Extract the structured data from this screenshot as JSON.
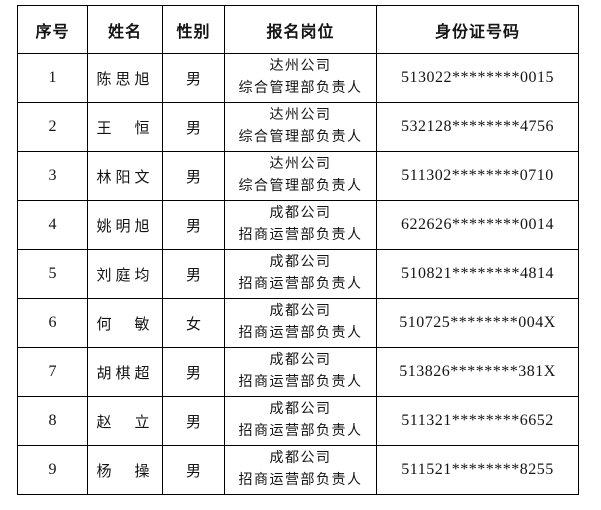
{
  "document": {
    "type": "applicant-roster-table",
    "colors": {
      "background": "#ffffff",
      "border": "#000000",
      "text": "#141414"
    }
  },
  "table": {
    "headers": {
      "no": "序号",
      "name": "姓名",
      "gender": "性别",
      "position": "报名岗位",
      "id_number": "身份证号码"
    },
    "rows": [
      {
        "no": "1",
        "name": "陈思旭",
        "gender": "男",
        "position_line1": "达州公司",
        "position_line2": "综合管理部负责人",
        "id_number": "513022********0015"
      },
      {
        "no": "2",
        "name": "王　恒",
        "gender": "男",
        "position_line1": "达州公司",
        "position_line2": "综合管理部负责人",
        "id_number": "532128********4756"
      },
      {
        "no": "3",
        "name": "林阳文",
        "gender": "男",
        "position_line1": "达州公司",
        "position_line2": "综合管理部负责人",
        "id_number": "511302********0710"
      },
      {
        "no": "4",
        "name": "姚明旭",
        "gender": "男",
        "position_line1": "成都公司",
        "position_line2": "招商运营部负责人",
        "id_number": "622626********0014"
      },
      {
        "no": "5",
        "name": "刘庭均",
        "gender": "男",
        "position_line1": "成都公司",
        "position_line2": "招商运营部负责人",
        "id_number": "510821********4814"
      },
      {
        "no": "6",
        "name": "何　敏",
        "gender": "女",
        "position_line1": "成都公司",
        "position_line2": "招商运营部负责人",
        "id_number": "510725********004X"
      },
      {
        "no": "7",
        "name": "胡棋超",
        "gender": "男",
        "position_line1": "成都公司",
        "position_line2": "招商运营部负责人",
        "id_number": "513826********381X"
      },
      {
        "no": "8",
        "name": "赵　立",
        "gender": "男",
        "position_line1": "成都公司",
        "position_line2": "招商运营部负责人",
        "id_number": "511321********6652"
      },
      {
        "no": "9",
        "name": "杨　操",
        "gender": "男",
        "position_line1": "成都公司",
        "position_line2": "招商运营部负责人",
        "id_number": "511521********8255"
      }
    ]
  }
}
